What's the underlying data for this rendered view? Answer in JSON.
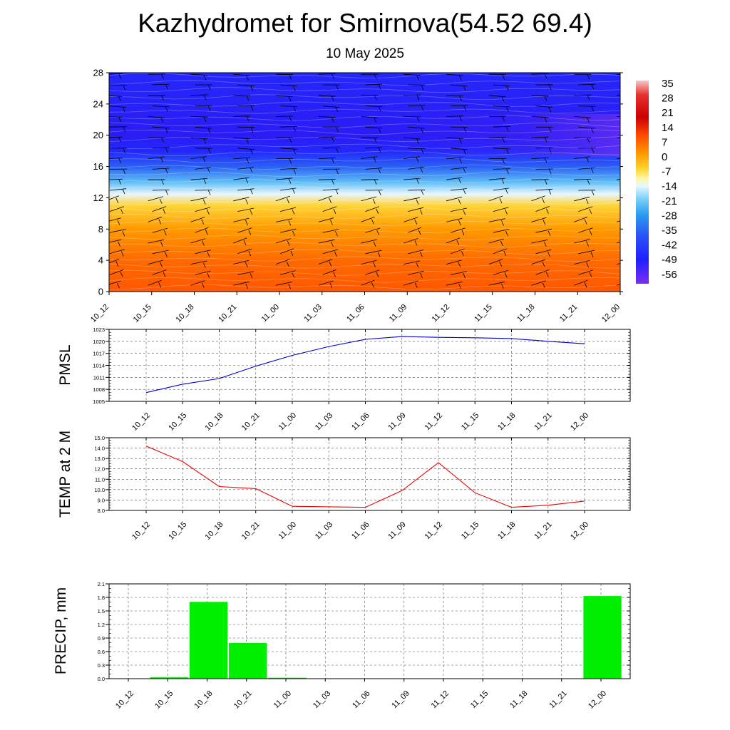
{
  "header": {
    "title": "Kazhydromet for Smirnova(54.52 69.4)",
    "subtitle": "10 May 2025"
  },
  "time_labels": [
    "10_12",
    "10_15",
    "10_18",
    "10_21",
    "11_00",
    "11_03",
    "11_06",
    "11_09",
    "11_12",
    "11_15",
    "11_18",
    "11_21",
    "12_00"
  ],
  "chart_data": [
    {
      "type": "heatmap",
      "x": [
        "10_12",
        "10_15",
        "10_18",
        "10_21",
        "11_00",
        "11_03",
        "11_06",
        "11_09",
        "11_12",
        "11_15",
        "11_18",
        "11_21",
        "12_00"
      ],
      "y_ticks": [
        0,
        4,
        8,
        12,
        16,
        20,
        24,
        28
      ],
      "ylim": [
        0,
        28
      ],
      "colorbar": {
        "ticks": [
          "35",
          "28",
          "21",
          "14",
          "7",
          "0",
          "-7",
          "-14",
          "-21",
          "-28",
          "-35",
          "-42",
          "-49",
          "-56"
        ],
        "colors": {
          "warm": "#ff6a00",
          "yellow": "#ffe040",
          "pale": "#e8f6ff",
          "cyan": "#29a8f0",
          "blue": "#2233ff",
          "violet": "#6a2cf0"
        }
      },
      "profile": [
        {
          "level": 0,
          "value": 12
        },
        {
          "level": 4,
          "value": 9
        },
        {
          "level": 8,
          "value": 5
        },
        {
          "level": 11,
          "value": -3
        },
        {
          "level": 12.5,
          "value": -14
        },
        {
          "level": 14,
          "value": -24
        },
        {
          "level": 16,
          "value": -35
        },
        {
          "level": 18,
          "value": -48
        },
        {
          "level": 20,
          "value": -52
        },
        {
          "level": 24,
          "value": -50
        },
        {
          "level": 28,
          "value": -48
        }
      ]
    },
    {
      "type": "line",
      "ylabel": "PMSL",
      "y_ticks": [
        "1005",
        "1008",
        "1011",
        "1014",
        "1017",
        "1020",
        "1023"
      ],
      "ylim": [
        1005,
        1023
      ],
      "x": [
        "10_12",
        "10_15",
        "10_18",
        "10_21",
        "11_00",
        "11_03",
        "11_06",
        "11_09",
        "11_12",
        "11_15",
        "11_18",
        "11_21",
        "12_00"
      ],
      "series": [
        {
          "values": [
            1007.2,
            1009.3,
            1010.7,
            1013.8,
            1016.5,
            1018.7,
            1020.5,
            1021.2,
            1021.0,
            1020.9,
            1020.7,
            1020.0,
            1019.4
          ],
          "color": "#0000cc"
        }
      ]
    },
    {
      "type": "line",
      "ylabel": "TEMP at 2 M",
      "y_ticks": [
        "8.0",
        "9.0",
        "10.0",
        "11.0",
        "12.0",
        "13.0",
        "14.0",
        "15.0"
      ],
      "ylim": [
        8,
        15
      ],
      "x": [
        "10_12",
        "10_15",
        "10_18",
        "10_21",
        "11_00",
        "11_03",
        "11_06",
        "11_09",
        "11_12",
        "11_15",
        "11_18",
        "11_21",
        "12_00"
      ],
      "series": [
        {
          "values": [
            14.2,
            12.7,
            10.3,
            10.1,
            8.4,
            8.35,
            8.3,
            9.9,
            12.6,
            9.7,
            8.3,
            8.5,
            8.9
          ],
          "color": "#ee0000"
        }
      ]
    },
    {
      "type": "bar",
      "ylabel": "PRECIP, mm",
      "y_ticks": [
        "0.0",
        "0.3",
        "0.6",
        "0.9",
        "1.2",
        "1.5",
        "1.8",
        "2.1"
      ],
      "ylim": [
        0,
        2.1
      ],
      "categories": [
        "10_12",
        "10_15",
        "10_18",
        "10_21",
        "11_00",
        "11_03",
        "11_06",
        "11_09",
        "11_12",
        "11_15",
        "11_18",
        "11_21",
        "12_00"
      ],
      "values": [
        0,
        0.03,
        1.7,
        0.79,
        0.02,
        0,
        0,
        0,
        0,
        0,
        0,
        0,
        1.83
      ],
      "color": "#00ee00"
    }
  ]
}
